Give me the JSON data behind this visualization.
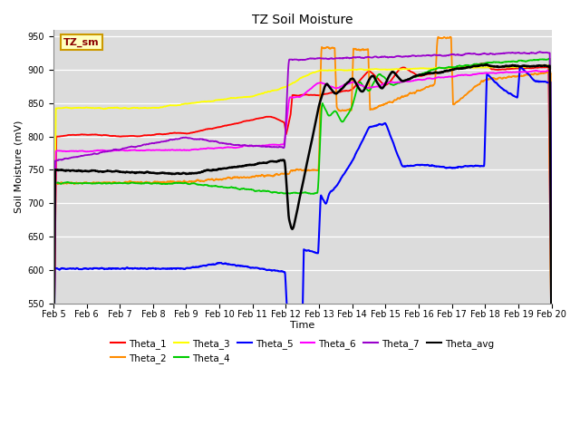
{
  "title": "TZ Soil Moisture",
  "ylabel": "Soil Moisture (mV)",
  "xlabel": "Time",
  "legend_label": "TZ_sm",
  "ylim": [
    550,
    960
  ],
  "yticks": [
    550,
    600,
    650,
    700,
    750,
    800,
    850,
    900,
    950
  ],
  "x_labels": [
    "Feb 5",
    "Feb 6",
    "Feb 7",
    "Feb 8",
    "Feb 9",
    "Feb 10",
    "Feb 11",
    "Feb 12",
    "Feb 13",
    "Feb 14",
    "Feb 15",
    "Feb 16",
    "Feb 17",
    "Feb 18",
    "Feb 19",
    "Feb 20"
  ],
  "series": {
    "Theta_1": {
      "color": "#ff0000"
    },
    "Theta_2": {
      "color": "#ff8c00"
    },
    "Theta_3": {
      "color": "#ffff00"
    },
    "Theta_4": {
      "color": "#00cc00"
    },
    "Theta_5": {
      "color": "#0000ff"
    },
    "Theta_6": {
      "color": "#ff00ff"
    },
    "Theta_7": {
      "color": "#9900cc"
    },
    "Theta_avg": {
      "color": "#000000"
    }
  },
  "bg_color": "#dcdcdc"
}
